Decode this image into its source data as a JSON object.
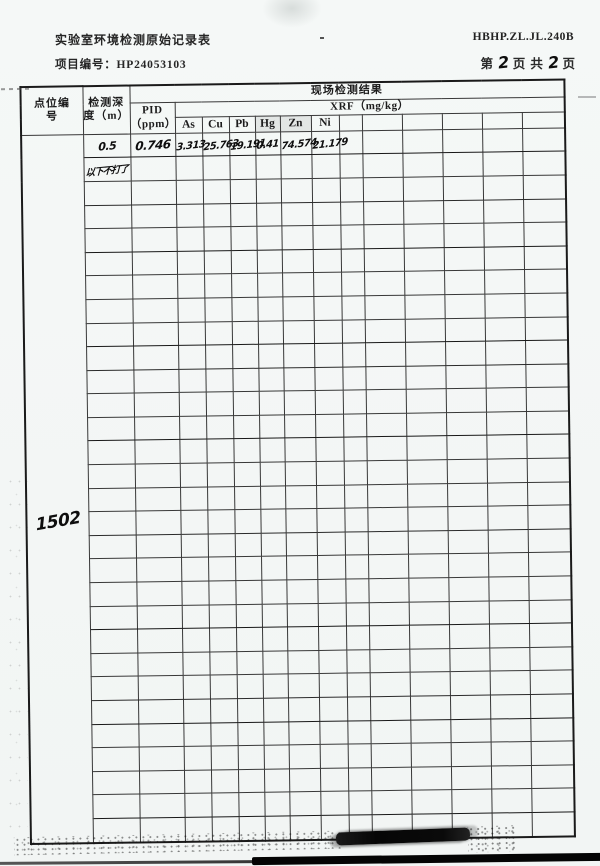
{
  "colors": {
    "paper": "#f4f7f6",
    "ink": "#1f1f1f",
    "pen": "#0e0e0e"
  },
  "header": {
    "title": "实验室环境检测原始记录表",
    "doc_code": "HBHP.ZL.JL.240B",
    "project_label": "项目编号：",
    "project_no": "HP24053103",
    "page_prefix": "第",
    "page_no": "2",
    "page_mid": "页 共",
    "page_total": "2",
    "page_suffix": "页"
  },
  "table": {
    "headers": {
      "point": "点位编\n号",
      "depth": "检测深\n度（m）",
      "result_group": "现场检测结果",
      "pid": "PID\n（ppm）",
      "xrf": "XRF（mg/kg）",
      "elements": [
        "As",
        "Cu",
        "Pb",
        "Hg",
        "Zn",
        "Ni",
        "",
        "",
        "",
        "",
        "",
        ""
      ]
    },
    "point_no": "1502",
    "grid": {
      "data_row_count": 30
    },
    "rows": [
      {
        "depth": "0.5",
        "pid": "0.746",
        "xrf": [
          "3.313",
          "25.763",
          "19.191",
          "0.41",
          "74.574",
          "21.179",
          "",
          "",
          "",
          "",
          "",
          ""
        ]
      },
      {
        "depth": "以下不打了",
        "pid": "",
        "xrf": [
          "",
          "",
          "",
          "",
          "",
          "",
          "",
          "",
          "",
          "",
          "",
          ""
        ]
      }
    ]
  }
}
